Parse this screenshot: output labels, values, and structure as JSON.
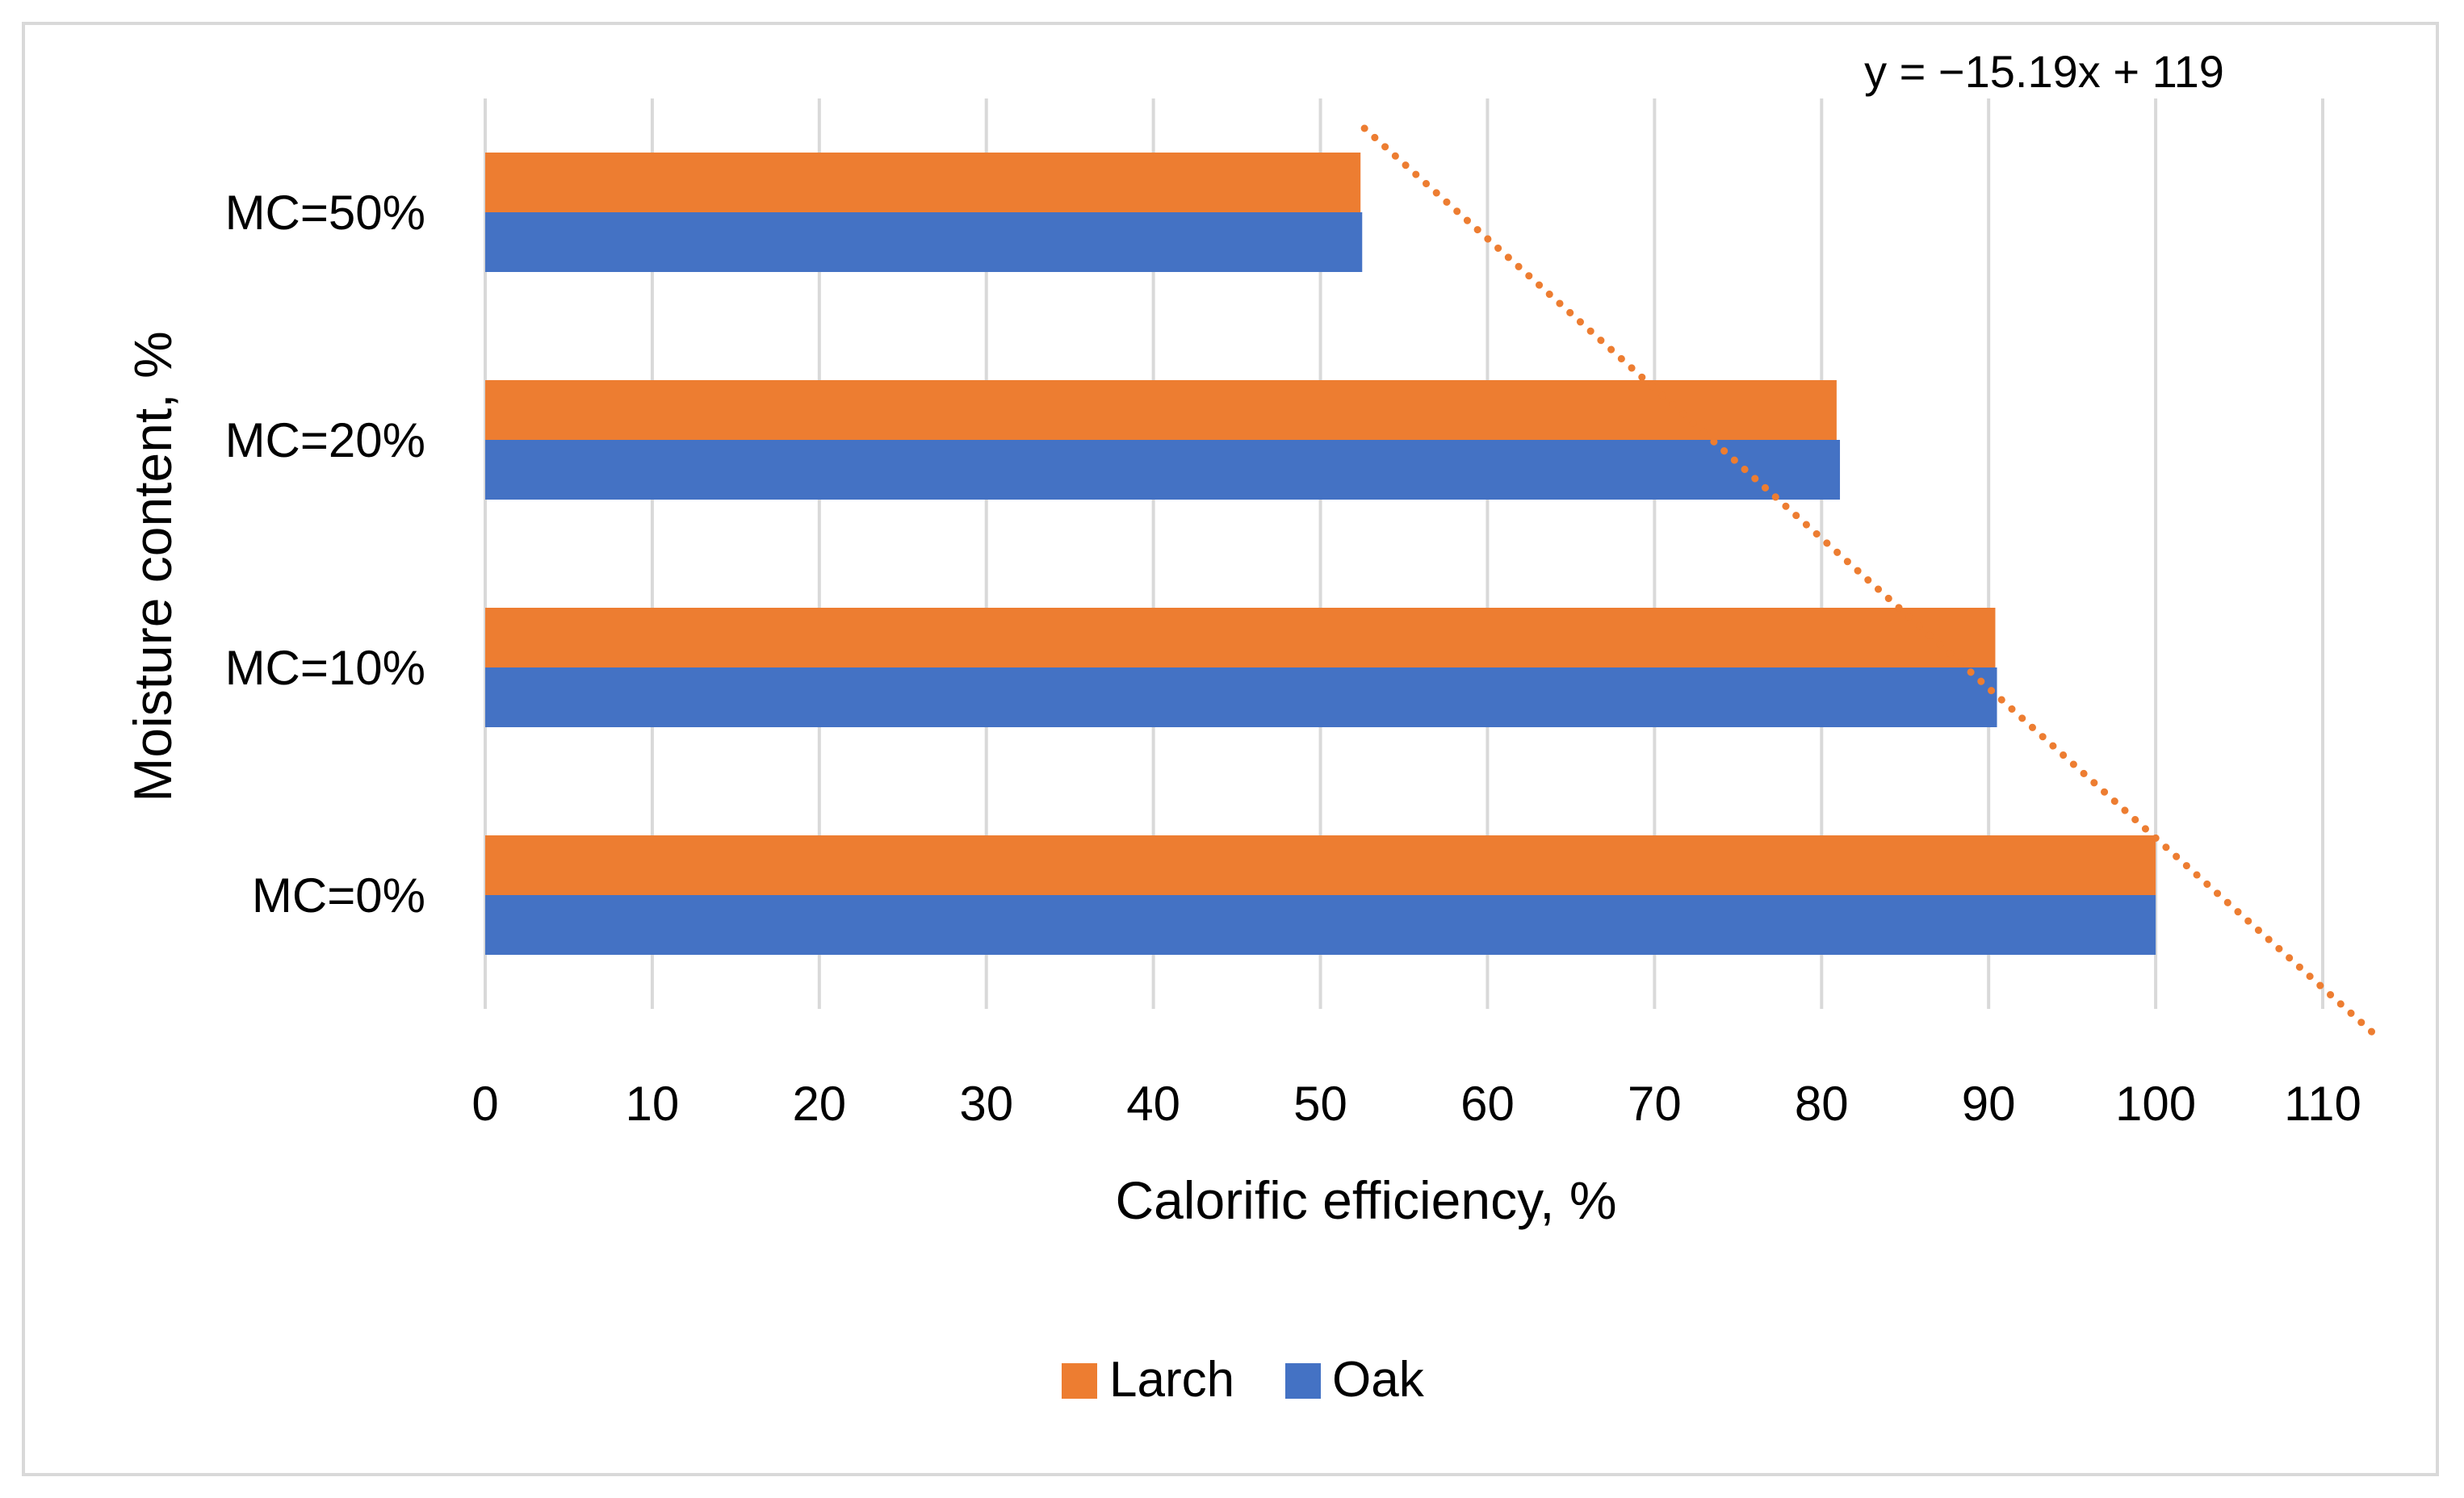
{
  "chart_data": {
    "type": "bar",
    "orientation": "horizontal",
    "title": "",
    "categories": [
      "MC=0%",
      "MC=10%",
      "MC=20%",
      "MC=50%"
    ],
    "series": [
      {
        "name": "Larch",
        "color": "#ED7D31",
        "values": [
          100,
          90.4,
          80.9,
          52.4
        ]
      },
      {
        "name": "Oak",
        "color": "#4472C4",
        "values": [
          100,
          90.5,
          81.1,
          52.5
        ]
      }
    ],
    "xlabel": "Calorific efficiency, %",
    "ylabel": "Moisture content, %",
    "xlim": [
      0,
      110
    ],
    "xticks": [
      "0",
      "10",
      "20",
      "30",
      "40",
      "50",
      "60",
      "70",
      "80",
      "90",
      "100",
      "110"
    ],
    "grid": true,
    "legend": {
      "position": "bottom",
      "entries": [
        "Larch",
        "Oak"
      ]
    },
    "trendline": {
      "series": "Larch",
      "style": "dotted",
      "color": "#ED7D31",
      "slope": -15.19,
      "intercept": 119,
      "x_category_start": 0.4,
      "x_category_end": 4.4,
      "equation_label": "y = −15.19x + 119"
    }
  }
}
